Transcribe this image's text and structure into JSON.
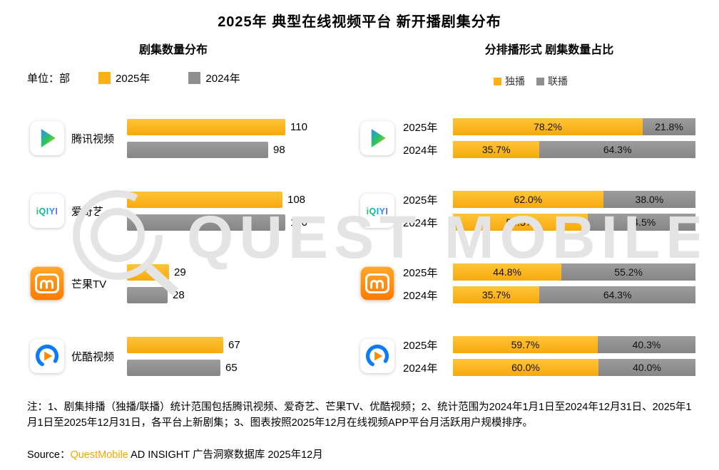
{
  "title": "2025年 典型在线视频平台 新开播剧集分布",
  "left_chart": {
    "subtitle": "剧集数量分布",
    "unit_label": "单位：部",
    "legend": [
      {
        "label": "2025年",
        "color": "#FBB016"
      },
      {
        "label": "2024年",
        "color": "#8F8F8F"
      }
    ]
  },
  "right_chart": {
    "subtitle": "分排播形式 剧集数量占比",
    "legend": [
      {
        "label": "独播",
        "color": "#FBB016"
      },
      {
        "label": "联播",
        "color": "#8F8F8F"
      }
    ]
  },
  "colors": {
    "year2025": "#FBB016",
    "year2024": "#8F8F8F",
    "solo": "#FBB016",
    "joint": "#8F8F8F",
    "brand_orange": "#F7A600",
    "watermark_gray": "#E4E4E4"
  },
  "platforms": [
    {
      "id": "tencent",
      "name": "腾讯视频"
    },
    {
      "id": "iqiyi",
      "name": "爱奇艺"
    },
    {
      "id": "mgtv",
      "name": "芒果TV"
    },
    {
      "id": "youku",
      "name": "优酷视频"
    }
  ],
  "chart_data": [
    {
      "type": "bar",
      "orientation": "horizontal",
      "title": "剧集数量分布",
      "unit": "部",
      "categories": [
        "腾讯视频",
        "爱奇艺",
        "芒果TV",
        "优酷视频"
      ],
      "series": [
        {
          "name": "2025年",
          "color": "#FBB016",
          "values": [
            110,
            108,
            29,
            67
          ]
        },
        {
          "name": "2024年",
          "color": "#8F8F8F",
          "values": [
            98,
            110,
            28,
            65
          ]
        }
      ],
      "xlim": [
        0,
        120
      ],
      "value_labels": true,
      "grid": false,
      "legend_position": "top-left"
    },
    {
      "type": "bar",
      "subtype": "stacked_100_percent",
      "orientation": "horizontal",
      "title": "分排播形式 剧集数量占比",
      "categories": [
        "腾讯视频",
        "爱奇艺",
        "芒果TV",
        "优酷视频"
      ],
      "segment_names": [
        "独播",
        "联播"
      ],
      "xlim": [
        0,
        100
      ],
      "grid": false,
      "legend_position": "top-right",
      "groups": [
        {
          "platform": "腾讯视频",
          "bars": [
            {
              "label": "2025年",
              "segments": [
                {
                  "name": "独播",
                  "value": 78.2
                },
                {
                  "name": "联播",
                  "value": 21.8
                }
              ]
            },
            {
              "label": "2024年",
              "segments": [
                {
                  "name": "独播",
                  "value": 35.7
                },
                {
                  "name": "联播",
                  "value": 64.3
                }
              ]
            }
          ]
        },
        {
          "platform": "爱奇艺",
          "bars": [
            {
              "label": "2025年",
              "segments": [
                {
                  "name": "独播",
                  "value": 62.0
                },
                {
                  "name": "联播",
                  "value": 38.0
                }
              ]
            },
            {
              "label": "2024年",
              "segments": [
                {
                  "name": "独播",
                  "value": 55.5
                },
                {
                  "name": "联播",
                  "value": 44.5
                }
              ]
            }
          ]
        },
        {
          "platform": "芒果TV",
          "bars": [
            {
              "label": "2025年",
              "segments": [
                {
                  "name": "独播",
                  "value": 44.8
                },
                {
                  "name": "联播",
                  "value": 55.2
                }
              ]
            },
            {
              "label": "2024年",
              "segments": [
                {
                  "name": "独播",
                  "value": 35.7
                },
                {
                  "name": "联播",
                  "value": 64.3
                }
              ]
            }
          ]
        },
        {
          "platform": "优酷视频",
          "bars": [
            {
              "label": "2025年",
              "segments": [
                {
                  "name": "独播",
                  "value": 59.7
                },
                {
                  "name": "联播",
                  "value": 40.3
                }
              ]
            },
            {
              "label": "2024年",
              "segments": [
                {
                  "name": "独播",
                  "value": 60.0
                },
                {
                  "name": "联播",
                  "value": 40.0
                }
              ]
            }
          ]
        }
      ]
    }
  ],
  "watermark": {
    "text": "QUEST MOBILE"
  },
  "notes": "注：1、剧集排播（独播/联播）统计范围包括腾讯视频、爱奇艺、芒果TV、优酷视频；2、统计范围为2024年1月1日至2024年12月31日、2025年1月1日至2025年12月31日，各平台上新剧集；3、图表按照2025年12月在线视频APP平台月活跃用户规模排序。",
  "source": {
    "prefix": "Source：",
    "brand": "QuestMobile",
    "suffix": " AD INSIGHT 广告洞察数据库 2025年12月"
  }
}
